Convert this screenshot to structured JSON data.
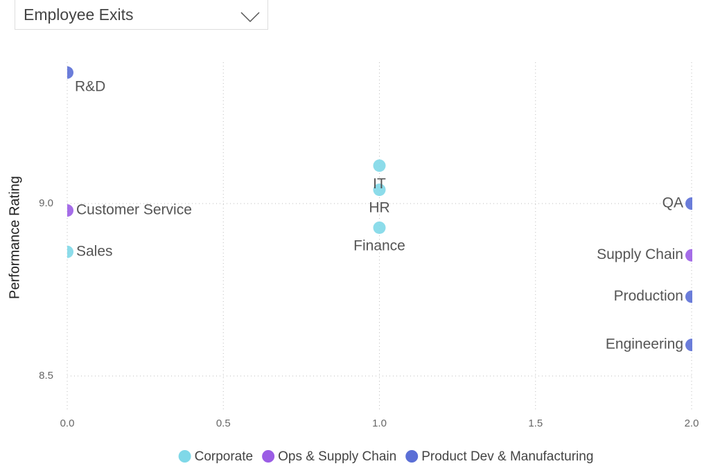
{
  "filter": {
    "selected": "Employee Exits"
  },
  "chart_data": {
    "type": "scatter",
    "y_label": "Performance Rating",
    "xlim": [
      0,
      2
    ],
    "ylim": [
      8.4,
      9.4
    ],
    "xticks": [
      {
        "value": 0,
        "label": "0.0"
      },
      0.5,
      {
        "value": 1,
        "label": "1.0"
      },
      1.5,
      {
        "value": 2,
        "label": "2.0"
      }
    ],
    "yticks": [
      8.5,
      {
        "value": 9,
        "label": "9.0"
      }
    ],
    "grid": true,
    "legend": "bottom",
    "series": [
      {
        "name": "Corporate",
        "color": "#7fd8e8",
        "x": [
          0,
          1,
          1,
          1
        ],
        "values": [
          8.86,
          9.11,
          9.04,
          8.93
        ],
        "labels": [
          "Sales",
          "IT",
          "HR",
          "Finance"
        ]
      },
      {
        "name": "Ops & Supply Chain",
        "color": "#9b5de5",
        "x": [
          0,
          2
        ],
        "values": [
          8.98,
          8.85
        ],
        "labels": [
          "Customer Service",
          "Supply Chain"
        ]
      },
      {
        "name": "Product Dev & Manufacturing",
        "color": "#5b6fd6",
        "x": [
          0,
          2,
          2,
          2
        ],
        "values": [
          9.38,
          9.0,
          8.73,
          8.59
        ],
        "labels": [
          "R&D",
          "QA",
          "Production",
          "Engineering"
        ]
      }
    ]
  }
}
